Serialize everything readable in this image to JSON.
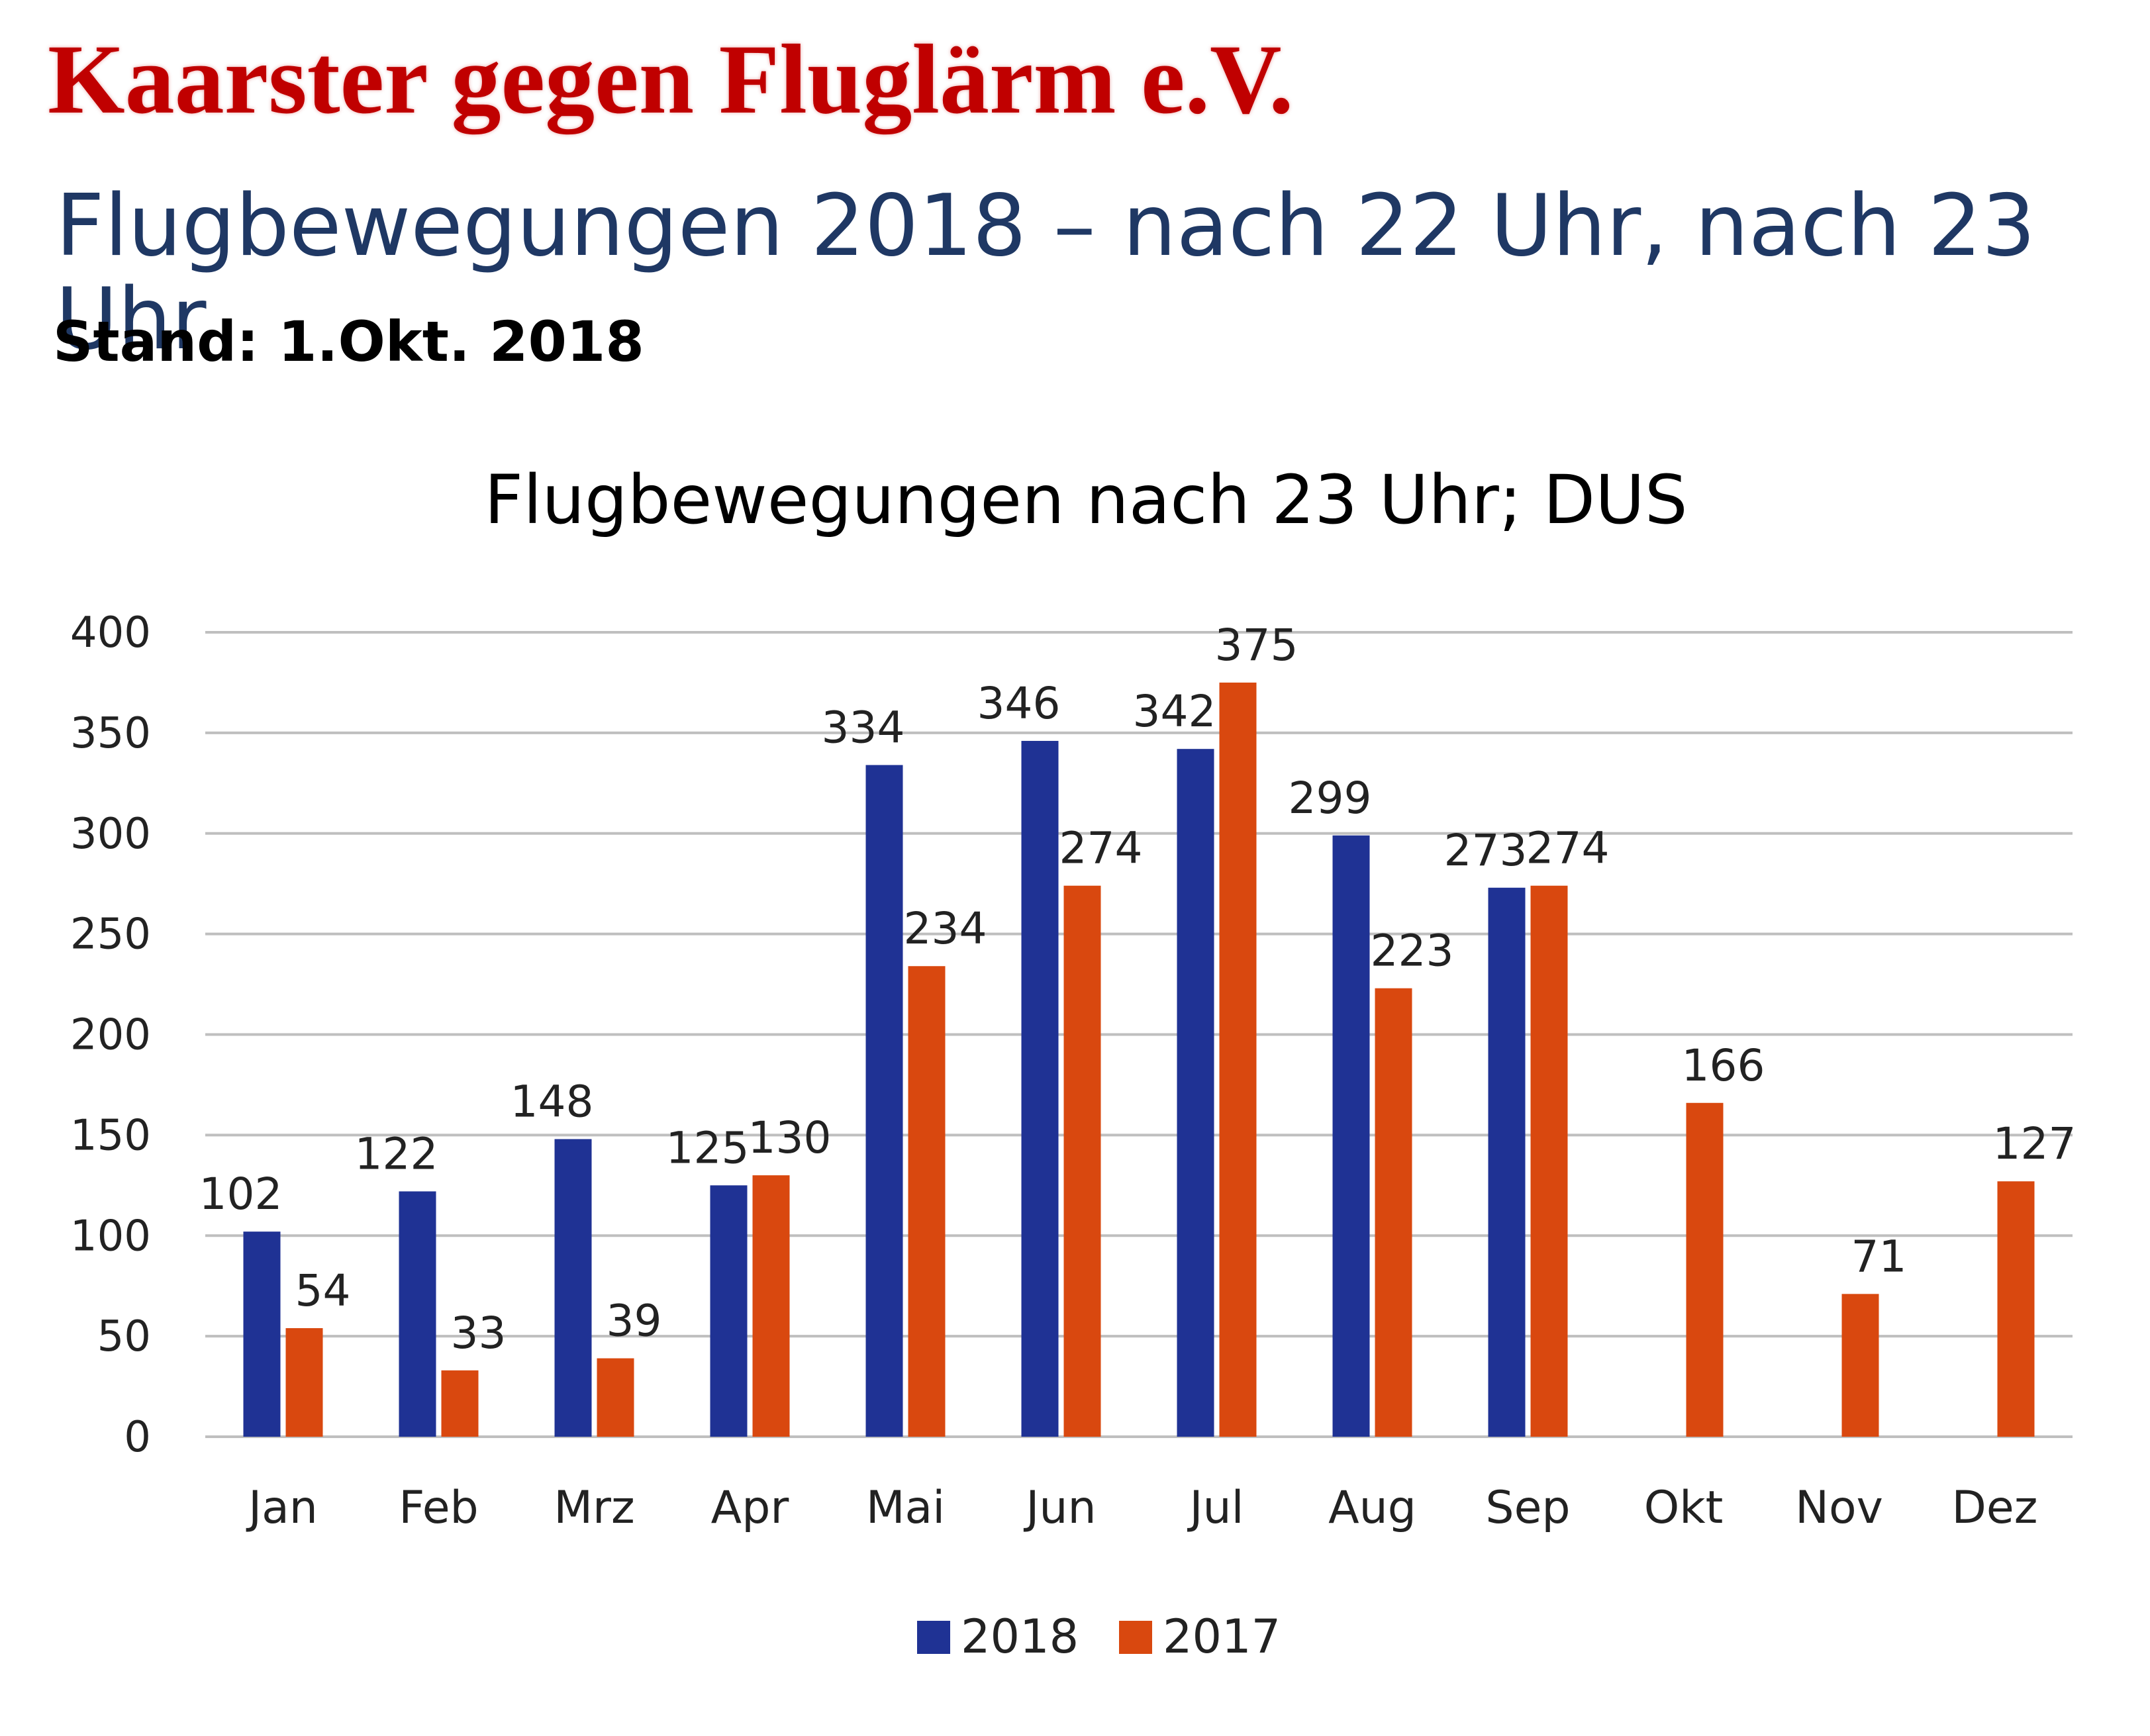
{
  "header": {
    "org_title": "Kaarster gegen Fluglärm e.V.",
    "slide_title": "Flugbewegungen 2018 – nach 22 Uhr, nach 23 Uhr",
    "stand": "Stand: 1.Okt. 2018"
  },
  "colors": {
    "s2018": "#1f3294",
    "s2017": "#d9480f",
    "grid": "#bfbfbf"
  },
  "chart_data": {
    "type": "bar",
    "title": "Flugbewegungen nach 23 Uhr; DUS",
    "categories": [
      "Jan",
      "Feb",
      "Mrz",
      "Apr",
      "Mai",
      "Jun",
      "Jul",
      "Aug",
      "Sep",
      "Okt",
      "Nov",
      "Dez"
    ],
    "series": [
      {
        "name": "2018",
        "values": [
          102,
          122,
          148,
          125,
          334,
          346,
          342,
          299,
          273,
          null,
          null,
          null
        ]
      },
      {
        "name": "2017",
        "values": [
          54,
          33,
          39,
          130,
          234,
          274,
          375,
          223,
          274,
          166,
          71,
          127
        ]
      }
    ],
    "ylim": [
      0,
      400
    ],
    "yticks": [
      0,
      50,
      100,
      150,
      200,
      250,
      300,
      350,
      400
    ],
    "grid": true,
    "legend_position": "bottom",
    "data_labels": true
  }
}
